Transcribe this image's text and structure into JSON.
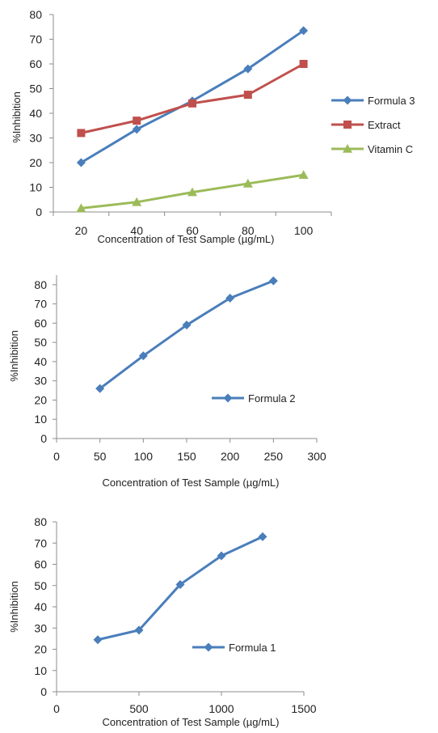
{
  "chart_data": [
    {
      "type": "line",
      "title": "",
      "xlabel": "Concentration of Test Sample (µg/mL)",
      "ylabel": "%Inhibition",
      "x": [
        20,
        40,
        60,
        80,
        100
      ],
      "x_ticks": [
        "20",
        "40",
        "60",
        "80",
        "100"
      ],
      "y_ticks": [
        "0",
        "10",
        "20",
        "30",
        "40",
        "50",
        "60",
        "70",
        "80"
      ],
      "ylim": [
        0,
        80
      ],
      "grid": false,
      "legend_position": "right",
      "series": [
        {
          "name": "Formula 3",
          "color": "#4a7ebb",
          "marker": "diamond",
          "values": [
            20,
            33.5,
            45,
            58,
            73.5
          ]
        },
        {
          "name": "Extract",
          "color": "#c0504d",
          "marker": "square",
          "values": [
            32,
            37,
            44,
            47.5,
            60
          ]
        },
        {
          "name": "Vitamin C",
          "color": "#9bbb59",
          "marker": "triangle",
          "values": [
            1.5,
            4,
            8,
            11.5,
            15
          ]
        }
      ]
    },
    {
      "type": "line",
      "title": "",
      "xlabel": "Concentration of Test Sample (µg/mL)",
      "ylabel": "%Inhibition",
      "x_ticks": [
        "0",
        "50",
        "100",
        "150",
        "200",
        "250",
        "300"
      ],
      "y_ticks": [
        "0",
        "10",
        "20",
        "30",
        "40",
        "50",
        "60",
        "70",
        "80"
      ],
      "xlim": [
        0,
        300
      ],
      "ylim": [
        0,
        85
      ],
      "grid": false,
      "legend_position": "inside right",
      "series": [
        {
          "name": "Formula 2",
          "color": "#4a7ebb",
          "marker": "diamond",
          "x": [
            50,
            100,
            150,
            200,
            250
          ],
          "values": [
            26,
            43,
            59,
            73,
            82
          ]
        }
      ]
    },
    {
      "type": "line",
      "title": "",
      "xlabel": "Concentration of Test Sample (µg/mL)",
      "ylabel": "%Inhibition",
      "x_ticks": [
        "0",
        "500",
        "1000",
        "1500"
      ],
      "y_ticks": [
        "0",
        "10",
        "20",
        "30",
        "40",
        "50",
        "60",
        "70",
        "80"
      ],
      "xlim": [
        0,
        1500
      ],
      "ylim": [
        0,
        80
      ],
      "grid": false,
      "legend_position": "inside right",
      "series": [
        {
          "name": "Formula 1",
          "color": "#4a7ebb",
          "marker": "diamond",
          "x": [
            250,
            500,
            750,
            1000,
            1250
          ],
          "values": [
            24.5,
            29,
            50.5,
            64,
            73
          ]
        }
      ]
    }
  ]
}
